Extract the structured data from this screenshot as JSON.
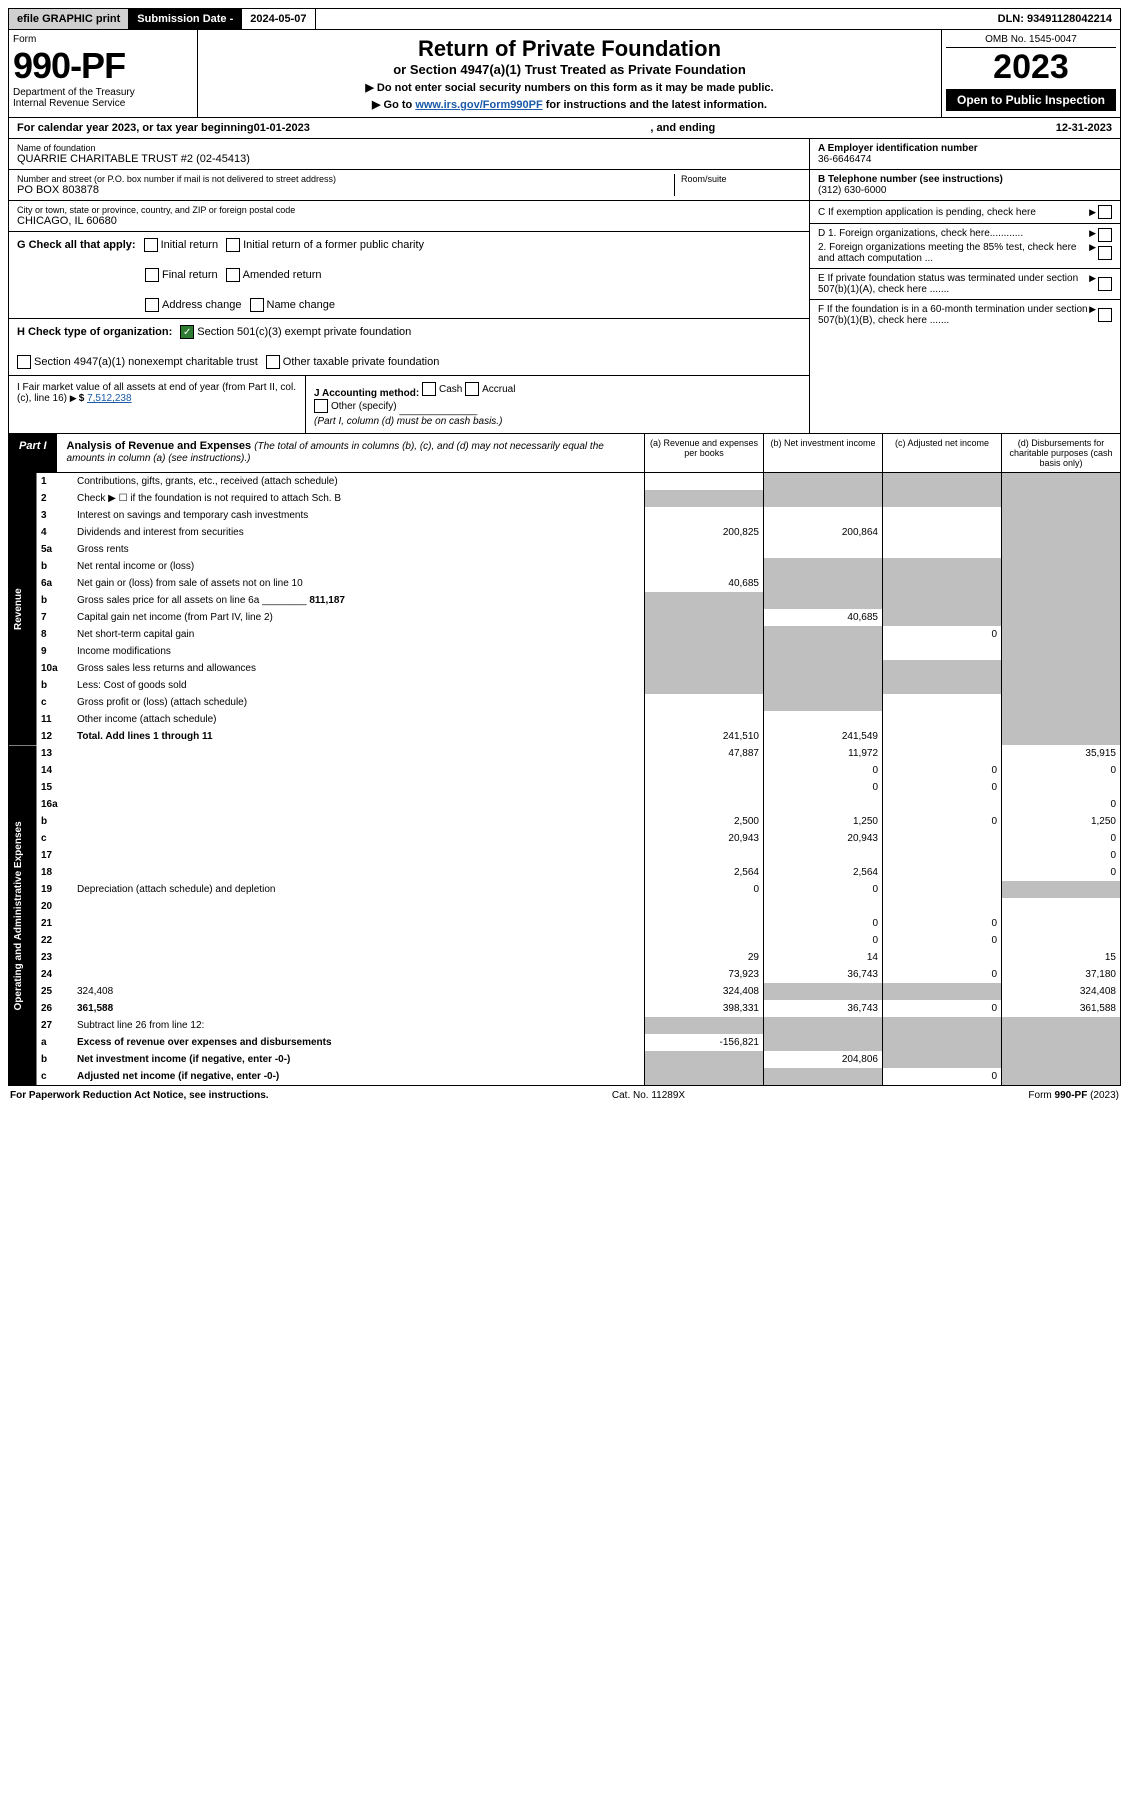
{
  "colors": {
    "black": "#000000",
    "white": "#ffffff",
    "gray_btn": "#d0d0d0",
    "shade": "#bfbfbf",
    "check_green": "#2e7d32",
    "link": "#1a5aa8"
  },
  "topbar": {
    "efile": "efile GRAPHIC print",
    "sub_lbl": "Submission Date - ",
    "sub_val": "2024-05-07",
    "dln": "DLN: 93491128042214"
  },
  "header": {
    "form_word": "Form",
    "form_no": "990-PF",
    "dept": "Department of the Treasury\nInternal Revenue Service",
    "title": "Return of Private Foundation",
    "subtitle": "or Section 4947(a)(1) Trust Treated as Private Foundation",
    "note1": "▶ Do not enter social security numbers on this form as it may be made public.",
    "note2_pre": "▶ Go to ",
    "note2_link": "www.irs.gov/Form990PF",
    "note2_post": " for instructions and the latest information.",
    "omb": "OMB No. 1545-0047",
    "year": "2023",
    "openpub": "Open to Public Inspection"
  },
  "cy": {
    "pre": "For calendar year 2023, or tax year beginning ",
    "begin": "01-01-2023",
    "mid": ", and ending ",
    "end": "12-31-2023"
  },
  "entity": {
    "name_lbl": "Name of foundation",
    "name": "QUARRIE CHARITABLE TRUST #2 (02-45413)",
    "addr_lbl": "Number and street (or P.O. box number if mail is not delivered to street address)",
    "room_lbl": "Room/suite",
    "addr": "PO BOX 803878",
    "city_lbl": "City or town, state or province, country, and ZIP or foreign postal code",
    "city": "CHICAGO, IL  60680",
    "A_lbl": "A Employer identification number",
    "A_val": "36-6646474",
    "B_lbl": "B Telephone number (see instructions)",
    "B_val": "(312) 630-6000",
    "C_lbl": "C If exemption application is pending, check here",
    "D1": "D 1. Foreign organizations, check here............",
    "D2": "2. Foreign organizations meeting the 85% test, check here and attach computation ...",
    "E": "E If private foundation status was terminated under section 507(b)(1)(A), check here .......",
    "F": "F If the foundation is in a 60-month termination under section 507(b)(1)(B), check here .......",
    "G_lbl": "G Check all that apply:",
    "G_opts": [
      "Initial return",
      "Final return",
      "Address change",
      "Initial return of a former public charity",
      "Amended return",
      "Name change"
    ],
    "H_lbl": "H Check type of organization:",
    "H_opts": [
      "Section 501(c)(3) exempt private foundation",
      "Section 4947(a)(1) nonexempt charitable trust",
      "Other taxable private foundation"
    ],
    "H_checked": 0,
    "I_lbl": "I Fair market value of all assets at end of year (from Part II, col. (c), line 16)",
    "I_val": "7,512,238",
    "J_lbl": "J Accounting method:",
    "J_opts": [
      "Cash",
      "Accrual",
      "Other (specify)"
    ],
    "J_note": "(Part I, column (d) must be on cash basis.)"
  },
  "partI": {
    "lbl": "Part I",
    "title": "Analysis of Revenue and Expenses",
    "title_note": "(The total of amounts in columns (b), (c), and (d) may not necessarily equal the amounts in column (a) (see instructions).)",
    "col_a": "(a) Revenue and expenses per books",
    "col_b": "(b) Net investment income",
    "col_c": "(c) Adjusted net income",
    "col_d": "(d) Disbursements for charitable purposes (cash basis only)"
  },
  "sections": {
    "rev": "Revenue",
    "exp": "Operating and Administrative Expenses"
  },
  "lines": {
    "l1": {
      "n": "1",
      "d": "Contributions, gifts, grants, etc., received (attach schedule)",
      "a": "",
      "b": "",
      "shade_b": true,
      "shade_c": true,
      "shade_d": true
    },
    "l2": {
      "n": "2",
      "d": "Check ▶ ☐ if the foundation is not required to attach Sch. B",
      "shade_all": true
    },
    "l3": {
      "n": "3",
      "d": "Interest on savings and temporary cash investments",
      "a": "",
      "b": "",
      "c": "",
      "shade_d": true
    },
    "l4": {
      "n": "4",
      "d": "Dividends and interest from securities",
      "a": "200,825",
      "b": "200,864",
      "c": "",
      "shade_d": true
    },
    "l5a": {
      "n": "5a",
      "d": "Gross rents",
      "a": "",
      "b": "",
      "c": "",
      "shade_d": true
    },
    "l5b": {
      "n": "b",
      "d": "Net rental income or (loss)",
      "shade_a": false,
      "shade_b": true,
      "shade_c": true,
      "shade_d": true
    },
    "l6a": {
      "n": "6a",
      "d": "Net gain or (loss) from sale of assets not on line 10",
      "a": "40,685",
      "shade_b": true,
      "shade_c": true,
      "shade_d": true
    },
    "l6b": {
      "n": "b",
      "d": "Gross sales price for all assets on line 6a",
      "inline": "811,187",
      "shade_all": true
    },
    "l7": {
      "n": "7",
      "d": "Capital gain net income (from Part IV, line 2)",
      "shade_a": true,
      "b": "40,685",
      "shade_c": true,
      "shade_d": true
    },
    "l8": {
      "n": "8",
      "d": "Net short-term capital gain",
      "shade_a": true,
      "shade_b": true,
      "c": "0",
      "shade_d": true
    },
    "l9": {
      "n": "9",
      "d": "Income modifications",
      "shade_a": true,
      "shade_b": true,
      "c": "",
      "shade_d": true
    },
    "l10a": {
      "n": "10a",
      "d": "Gross sales less returns and allowances",
      "shade_all": true
    },
    "l10b": {
      "n": "b",
      "d": "Less: Cost of goods sold",
      "shade_all": true
    },
    "l10c": {
      "n": "c",
      "d": "Gross profit or (loss) (attach schedule)",
      "a": "",
      "shade_b": true,
      "c": "",
      "shade_d": true
    },
    "l11": {
      "n": "11",
      "d": "Other income (attach schedule)",
      "a": "",
      "b": "",
      "c": "",
      "shade_d": true
    },
    "l12": {
      "n": "12",
      "d": "Total. Add lines 1 through 11",
      "bold": true,
      "a": "241,510",
      "b": "241,549",
      "c": "",
      "shade_d": true
    },
    "l13": {
      "n": "13",
      "d": "35,915",
      "a": "47,887",
      "b": "11,972",
      "c": ""
    },
    "l14": {
      "n": "14",
      "d": "0",
      "a": "",
      "b": "0",
      "c": "0"
    },
    "l15": {
      "n": "15",
      "d": "",
      "a": "",
      "b": "0",
      "c": "0"
    },
    "l16a": {
      "n": "16a",
      "d": "0",
      "a": "",
      "b": "",
      "c": ""
    },
    "l16b": {
      "n": "b",
      "d": "1,250",
      "a": "2,500",
      "b": "1,250",
      "c": "0"
    },
    "l16c": {
      "n": "c",
      "d": "0",
      "a": "20,943",
      "b": "20,943",
      "c": ""
    },
    "l17": {
      "n": "17",
      "d": "0",
      "a": "",
      "b": "",
      "c": ""
    },
    "l18": {
      "n": "18",
      "d": "0",
      "a": "2,564",
      "b": "2,564",
      "c": ""
    },
    "l19": {
      "n": "19",
      "d": "Depreciation (attach schedule) and depletion",
      "a": "0",
      "b": "0",
      "c": "",
      "shade_d": true
    },
    "l20": {
      "n": "20",
      "d": "",
      "a": "",
      "b": "",
      "c": ""
    },
    "l21": {
      "n": "21",
      "d": "",
      "a": "",
      "b": "0",
      "c": "0"
    },
    "l22": {
      "n": "22",
      "d": "",
      "a": "",
      "b": "0",
      "c": "0"
    },
    "l23": {
      "n": "23",
      "d": "15",
      "a": "29",
      "b": "14",
      "c": ""
    },
    "l24": {
      "n": "24",
      "d": "37,180",
      "bold": true,
      "a": "73,923",
      "b": "36,743",
      "c": "0"
    },
    "l25": {
      "n": "25",
      "d": "324,408",
      "a": "324,408",
      "shade_b": true,
      "shade_c": true
    },
    "l26": {
      "n": "26",
      "d": "361,588",
      "bold": true,
      "a": "398,331",
      "b": "36,743",
      "c": "0"
    },
    "l27": {
      "n": "27",
      "d": "Subtract line 26 from line 12:",
      "shade_a": true,
      "shade_b": true,
      "shade_c": true,
      "shade_d": true
    },
    "l27a": {
      "n": "a",
      "d": "Excess of revenue over expenses and disbursements",
      "bold": true,
      "a": "-156,821",
      "shade_b": true,
      "shade_c": true,
      "shade_d": true
    },
    "l27b": {
      "n": "b",
      "d": "Net investment income (if negative, enter -0-)",
      "bold": true,
      "shade_a": true,
      "b": "204,806",
      "shade_c": true,
      "shade_d": true
    },
    "l27c": {
      "n": "c",
      "d": "Adjusted net income (if negative, enter -0-)",
      "bold": true,
      "shade_a": true,
      "shade_b": true,
      "c": "0",
      "shade_d": true
    }
  },
  "footer": {
    "left": "For Paperwork Reduction Act Notice, see instructions.",
    "mid": "Cat. No. 11289X",
    "right": "Form 990-PF (2023)"
  }
}
